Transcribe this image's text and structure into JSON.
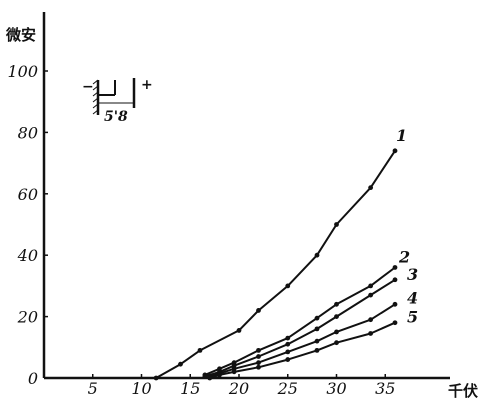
{
  "chart_data": {
    "type": "line",
    "ylabel": "微安",
    "xlabel": "千伏",
    "xlim": [
      0,
      38
    ],
    "ylim": [
      0,
      110
    ],
    "x_ticks": [
      "5",
      "10",
      "15",
      "20",
      "25",
      "30",
      "35"
    ],
    "y_ticks": [
      "0",
      "20",
      "40",
      "60",
      "80",
      "100"
    ],
    "grid": false,
    "inset": {
      "minus": "−",
      "plus": "+",
      "gap_labels": "5'8"
    },
    "series": [
      {
        "label": "1",
        "x": [
          11.5,
          14,
          16,
          20,
          22,
          25,
          28,
          30,
          33.5,
          36
        ],
        "y": [
          0,
          4.5,
          9,
          15.5,
          22,
          30,
          40,
          50,
          62,
          74
        ]
      },
      {
        "label": "2",
        "x": [
          16.5,
          18,
          19.5,
          22,
          25,
          28,
          30,
          33.5,
          36
        ],
        "y": [
          1,
          3,
          5,
          9,
          13,
          19.5,
          24,
          30,
          36
        ]
      },
      {
        "label": "3",
        "x": [
          16.5,
          18,
          19.5,
          22,
          25,
          28,
          30,
          33.5,
          36
        ],
        "y": [
          0.5,
          2,
          4,
          7,
          11,
          16,
          20,
          27,
          32
        ]
      },
      {
        "label": "4",
        "x": [
          17,
          18,
          19.5,
          22,
          25,
          28,
          30,
          33.5,
          36
        ],
        "y": [
          0.5,
          1.5,
          3,
          5,
          8.5,
          12,
          15,
          19,
          24
        ]
      },
      {
        "label": "5",
        "x": [
          17,
          18,
          19.5,
          22,
          25,
          28,
          30,
          33.5,
          36
        ],
        "y": [
          0,
          1,
          2,
          3.5,
          6,
          9,
          11.5,
          14.5,
          18
        ]
      }
    ]
  }
}
